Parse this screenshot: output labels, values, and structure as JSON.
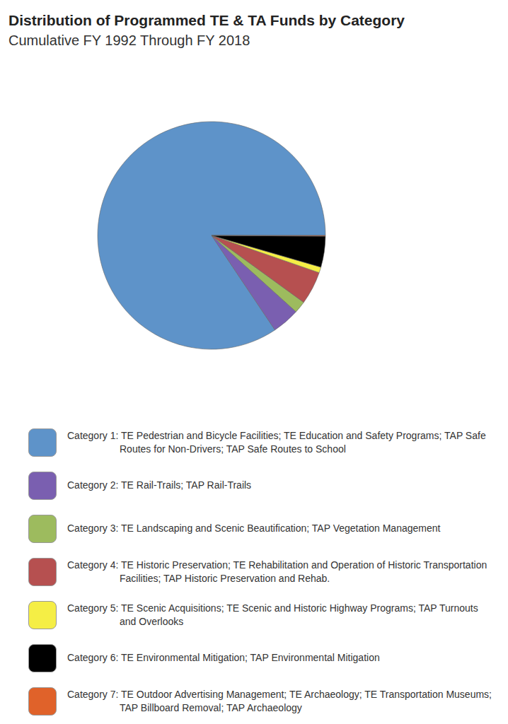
{
  "chart_data": {
    "type": "pie",
    "title": "Distribution of Programmed TE & TA Funds by Category",
    "subtitle": "Cumulative FY 1992 Through FY 2018",
    "categories": [
      "Category 1: TE Pedestrian and Bicycle Facilities; TE Education and Safety Programs; TAP Safe Routes for Non-Drivers; TAP Safe Routes to School",
      "Category 2: TE Rail-Trails; TAP Rail-Trails",
      "Category 3: TE Landscaping and Scenic Beautification; TAP Vegetation Management",
      "Category 4: TE Historic Preservation; TE Rehabilitation and Operation of Historic Transportation Facilities; TAP Historic Preservation and Rehab.",
      "Category 5: TE Scenic Acquisitions; TE Scenic and Historic Highway Programs; TAP Turnouts and Overlooks",
      "Category 6: TE Environmental Mitigation; TAP Environmental Mitigation",
      "Category 7: TE Outdoor Advertising Management; TE Archaeology; TE Transportation Museums; TAP Billboard Removal; TAP Archaeology"
    ],
    "values": [
      84.4,
      3.9,
      1.7,
      4.7,
      0.8,
      4.4,
      0.1
    ],
    "colors": [
      "#5e93c9",
      "#7a5fb0",
      "#9dbb5e",
      "#b65050",
      "#f5ee45",
      "#000000",
      "#e0622a"
    ],
    "legend": "bottom"
  }
}
